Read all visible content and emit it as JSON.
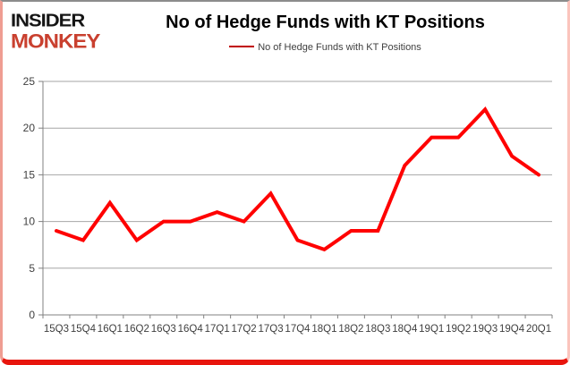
{
  "logo": {
    "line1": "INSIDER",
    "line2": "MONKEY",
    "line1_color": "#151515",
    "line2_color": "#c9402f"
  },
  "header": {
    "title": "No of Hedge Funds with KT Positions"
  },
  "legend": {
    "label": "No of Hedge Funds with KT Positions",
    "swatch_color": "#c00000"
  },
  "chart_data": {
    "type": "line",
    "title": "No of Hedge Funds with KT Positions",
    "categories": [
      "15Q3",
      "15Q4",
      "16Q1",
      "16Q2",
      "16Q3",
      "16Q4",
      "17Q1",
      "17Q2",
      "17Q3",
      "17Q4",
      "18Q1",
      "18Q2",
      "18Q3",
      "18Q4",
      "19Q1",
      "19Q2",
      "19Q3",
      "19Q4",
      "20Q1"
    ],
    "series": [
      {
        "name": "No of Hedge Funds with KT Positions",
        "values": [
          9,
          8,
          12,
          8,
          10,
          10,
          11,
          10,
          13,
          8,
          7,
          9,
          9,
          16,
          19,
          19,
          22,
          17,
          15
        ],
        "color": "#ff0000"
      }
    ],
    "xlabel": "",
    "ylabel": "",
    "ylim": [
      0,
      25
    ],
    "yticks": [
      0,
      5,
      10,
      15,
      20,
      25
    ],
    "grid": true,
    "legend_position": "top-center",
    "gridline_color": "#a6a6a6",
    "axis_color": "#808080",
    "tick_label_color": "#3f3f3f",
    "line_width": 4
  }
}
